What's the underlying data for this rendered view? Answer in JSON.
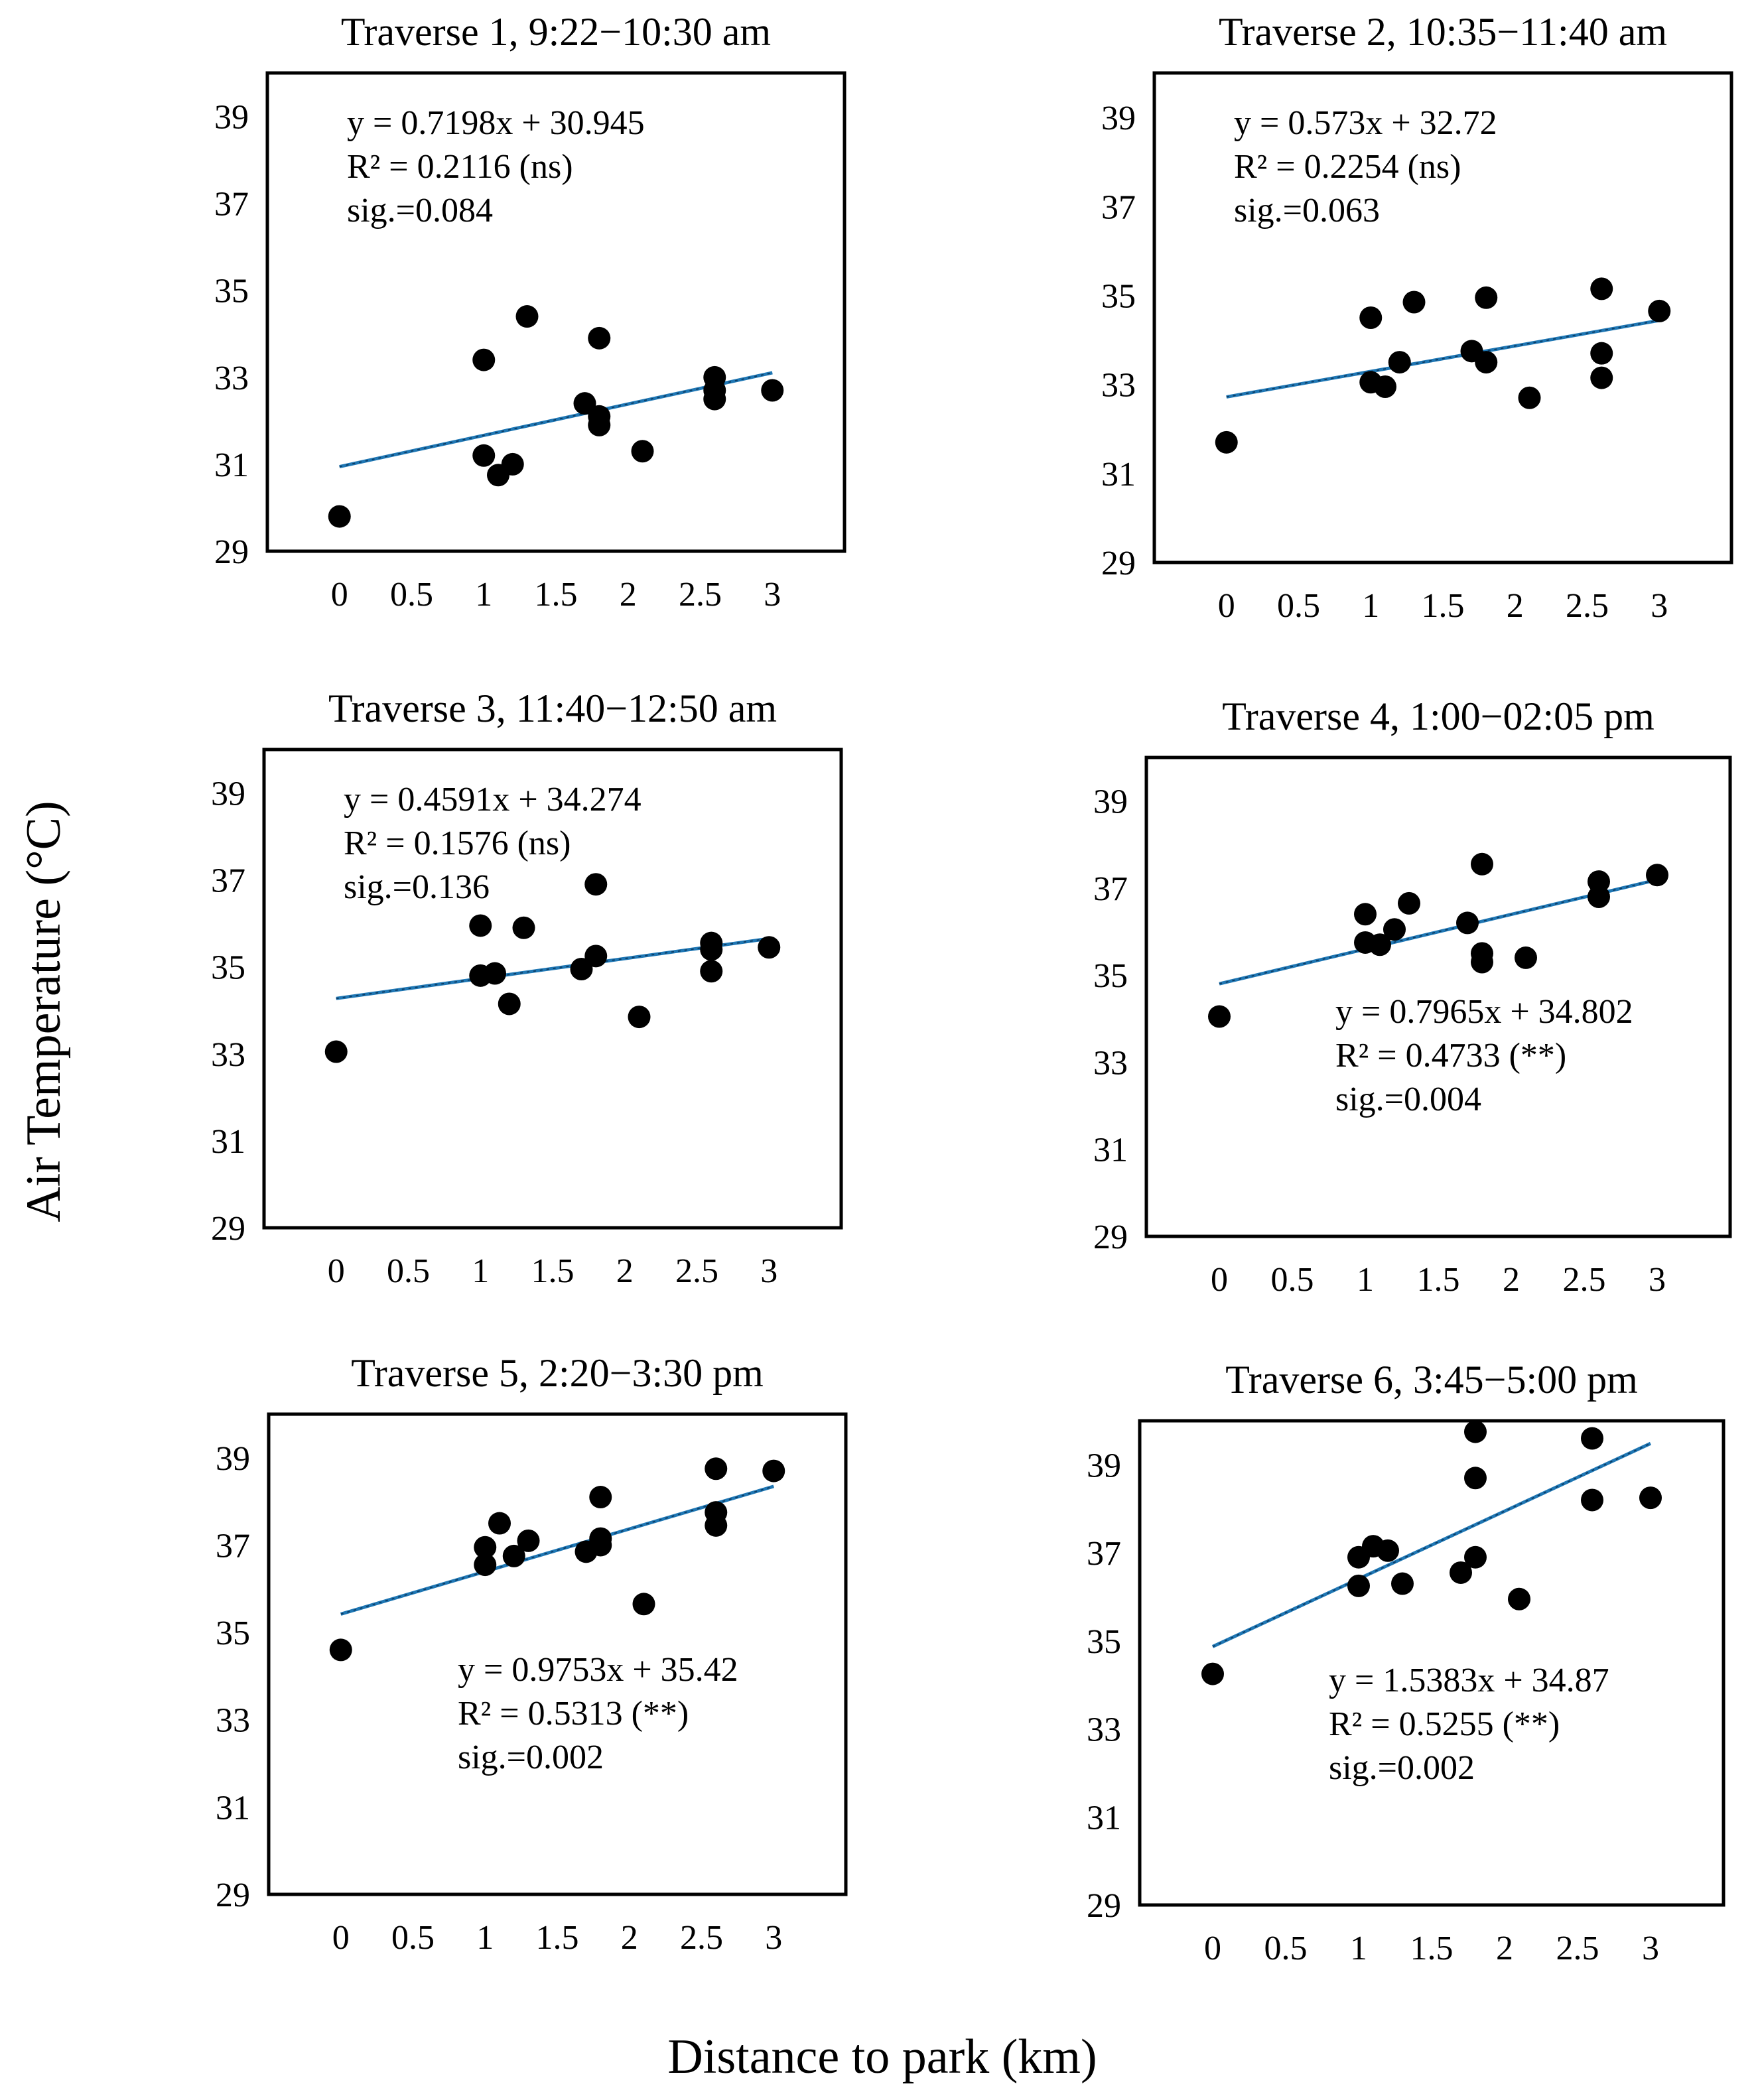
{
  "figure": {
    "ylabel": "Air Temperature (°C)",
    "xlabel": "Distance to park (km)"
  },
  "colors": {
    "marker": "#000000",
    "trendline": "#1f77b4",
    "frame": "#000000"
  },
  "chart_data": [
    {
      "type": "scatter",
      "title": "Traverse 1, 9:22−10:30 am",
      "xlabel": "Distance to park (km)",
      "ylabel": "Air Temperature (°C)",
      "xlim": [
        -0.5,
        3.5
      ],
      "ylim": [
        29,
        40
      ],
      "xticks": [
        "0",
        "0.5",
        "1",
        "1.5",
        "2",
        "2.5",
        "3"
      ],
      "yticks": [
        "29",
        "31",
        "33",
        "35",
        "37",
        "39"
      ],
      "x": [
        0,
        1,
        1,
        1.1,
        1.2,
        1.3,
        1.7,
        1.8,
        1.8,
        1.8,
        2.1,
        2.6,
        2.6,
        2.6,
        3
      ],
      "y": [
        29.8,
        33.4,
        31.2,
        30.75,
        31.0,
        34.4,
        32.4,
        33.9,
        32.1,
        31.9,
        31.3,
        33.0,
        32.7,
        32.5,
        32.7
      ],
      "fit": {
        "slope": 0.7198,
        "intercept": 30.945
      },
      "annotation": [
        "y = 0.7198x + 30.945",
        "R² = 0.2116 (ns)",
        "sig.=0.084"
      ],
      "annotation_position": "top-left"
    },
    {
      "type": "scatter",
      "title": "Traverse 2, 10:35−11:40 am",
      "xlabel": "Distance to park (km)",
      "ylabel": "Air Temperature (°C)",
      "xlim": [
        -0.5,
        3.5
      ],
      "ylim": [
        29,
        40
      ],
      "xticks": [
        "0",
        "0.5",
        "1",
        "1.5",
        "2",
        "2.5",
        "3"
      ],
      "yticks": [
        "29",
        "31",
        "33",
        "35",
        "37",
        "39"
      ],
      "x": [
        0,
        1,
        1,
        1.1,
        1.2,
        1.3,
        1.7,
        1.8,
        1.8,
        2.1,
        2.6,
        2.6,
        2.6,
        3
      ],
      "y": [
        31.7,
        34.5,
        33.05,
        32.95,
        33.5,
        34.85,
        33.75,
        34.95,
        33.5,
        32.7,
        35.15,
        33.7,
        33.15,
        34.65
      ],
      "fit": {
        "slope": 0.573,
        "intercept": 32.72
      },
      "annotation": [
        "y = 0.573x + 32.72",
        "R² = 0.2254 (ns)",
        "sig.=0.063"
      ],
      "annotation_position": "top-left"
    },
    {
      "type": "scatter",
      "title": "Traverse 3, 11:40−12:50 am",
      "xlabel": "Distance to park (km)",
      "ylabel": "Air Temperature (°C)",
      "xlim": [
        -0.5,
        3.5
      ],
      "ylim": [
        29,
        40
      ],
      "xticks": [
        "0",
        "0.5",
        "1",
        "1.5",
        "2",
        "2.5",
        "3"
      ],
      "yticks": [
        "29",
        "31",
        "33",
        "35",
        "37",
        "39"
      ],
      "x": [
        0,
        1,
        1,
        1.1,
        1.2,
        1.3,
        1.7,
        1.8,
        1.8,
        2.1,
        2.6,
        2.6,
        2.6,
        3
      ],
      "y": [
        33.05,
        35.95,
        34.8,
        34.85,
        34.15,
        35.9,
        34.95,
        36.9,
        35.25,
        33.85,
        35.55,
        35.4,
        34.9,
        35.45
      ],
      "fit": {
        "slope": 0.4591,
        "intercept": 34.274
      },
      "annotation": [
        "y = 0.4591x + 34.274",
        "R² = 0.1576 (ns)",
        "sig.=0.136"
      ],
      "annotation_position": "top-left"
    },
    {
      "type": "scatter",
      "title": "Traverse 4, 1:00−02:05 pm",
      "xlabel": "Distance to park (km)",
      "ylabel": "Air Temperature (°C)",
      "xlim": [
        -0.5,
        3.5
      ],
      "ylim": [
        29,
        40
      ],
      "xticks": [
        "0",
        "0.5",
        "1",
        "1.5",
        "2",
        "2.5",
        "3"
      ],
      "yticks": [
        "29",
        "31",
        "33",
        "35",
        "37",
        "39"
      ],
      "x": [
        0,
        1,
        1,
        1.1,
        1.2,
        1.3,
        1.7,
        1.8,
        1.8,
        1.8,
        2.1,
        2.6,
        2.6,
        3
      ],
      "y": [
        34.05,
        36.4,
        35.75,
        35.7,
        36.05,
        36.65,
        36.2,
        37.55,
        35.5,
        35.3,
        35.4,
        37.15,
        36.8,
        37.3
      ],
      "fit": {
        "slope": 0.7965,
        "intercept": 34.802
      },
      "annotation": [
        "y = 0.7965x + 34.802",
        "R² = 0.4733 (**)",
        "sig.=0.004"
      ],
      "annotation_position": "bottom-right"
    },
    {
      "type": "scatter",
      "title": "Traverse 5, 2:20−3:30 pm",
      "xlabel": "Distance to park (km)",
      "ylabel": "Air Temperature (°C)",
      "xlim": [
        -0.5,
        3.5
      ],
      "ylim": [
        29,
        40
      ],
      "xticks": [
        "0",
        "0.5",
        "1",
        "1.5",
        "2",
        "2.5",
        "3"
      ],
      "yticks": [
        "29",
        "31",
        "33",
        "35",
        "37",
        "39"
      ],
      "x": [
        0,
        1,
        1,
        1.1,
        1.2,
        1.3,
        1.7,
        1.8,
        1.8,
        1.8,
        2.1,
        2.6,
        2.6,
        2.6,
        3
      ],
      "y": [
        34.6,
        36.95,
        36.55,
        37.5,
        36.75,
        37.1,
        36.85,
        38.1,
        37.15,
        37.0,
        35.65,
        38.75,
        37.75,
        37.45,
        38.7
      ],
      "fit": {
        "slope": 0.9753,
        "intercept": 35.42
      },
      "annotation": [
        "y = 0.9753x + 35.42",
        "R² = 0.5313 (**)",
        "sig.=0.002"
      ],
      "annotation_position": "bottom-right"
    },
    {
      "type": "scatter",
      "title": "Traverse 6, 3:45−5:00 pm",
      "xlabel": "Distance to park (km)",
      "ylabel": "Air Temperature (°C)",
      "xlim": [
        -0.5,
        3.5
      ],
      "ylim": [
        29,
        40
      ],
      "xticks": [
        "0",
        "0.5",
        "1",
        "1.5",
        "2",
        "2.5",
        "3"
      ],
      "yticks": [
        "29",
        "31",
        "33",
        "35",
        "37",
        "39"
      ],
      "x": [
        0,
        1,
        1,
        1.1,
        1.2,
        1.3,
        1.7,
        1.8,
        1.8,
        1.8,
        2.1,
        2.6,
        2.6,
        3
      ],
      "y": [
        34.25,
        36.9,
        36.25,
        37.15,
        37.05,
        36.3,
        36.55,
        39.75,
        38.7,
        36.9,
        35.95,
        39.6,
        38.2,
        38.25
      ],
      "fit": {
        "slope": 1.5383,
        "intercept": 34.87
      },
      "annotation": [
        "y = 1.5383x + 34.87",
        "R² = 0.5255 (**)",
        "sig.=0.002"
      ],
      "annotation_position": "bottom-right"
    }
  ]
}
